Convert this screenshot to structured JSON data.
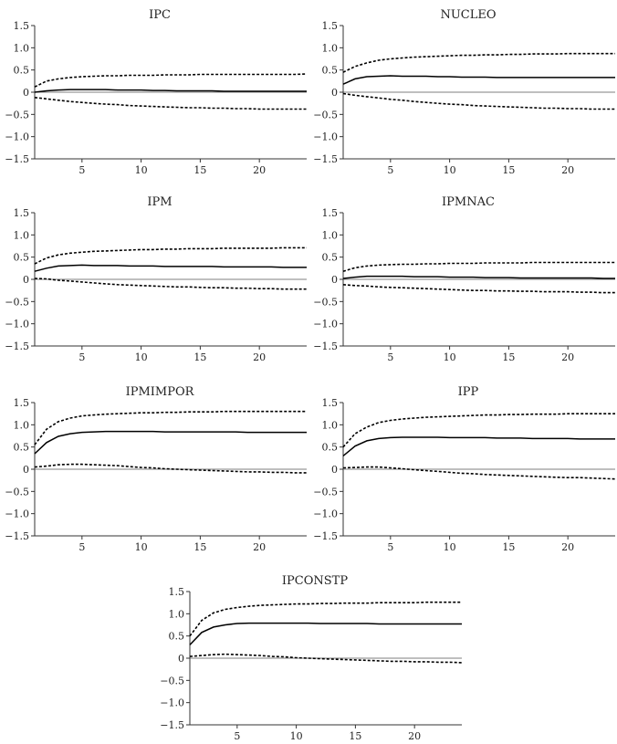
{
  "chart_data": [
    {
      "type": "line",
      "title": "IPC",
      "xlabel": "",
      "ylabel": "",
      "xlim": [
        1,
        24
      ],
      "ylim": [
        -1.5,
        1.5
      ],
      "xticks": [
        5,
        10,
        15,
        20
      ],
      "xtick_labels": [
        "5",
        "10",
        "15",
        "20"
      ],
      "yticks": [
        1.5,
        1.0,
        0.5,
        0,
        -0.5,
        -1.0,
        -1.5
      ],
      "ytick_labels": [
        "1.5",
        "1.0",
        "0.5",
        "0",
        "−0.5",
        "−1.0",
        "−1.5"
      ],
      "x": [
        1,
        2,
        3,
        4,
        5,
        6,
        7,
        8,
        9,
        10,
        11,
        12,
        13,
        14,
        15,
        16,
        17,
        18,
        19,
        20,
        21,
        22,
        23,
        24
      ],
      "series": [
        {
          "name": "upper",
          "style": "dashed",
          "values": [
            0.12,
            0.25,
            0.3,
            0.33,
            0.35,
            0.36,
            0.37,
            0.37,
            0.38,
            0.38,
            0.38,
            0.39,
            0.39,
            0.39,
            0.4,
            0.4,
            0.4,
            0.4,
            0.4,
            0.4,
            0.4,
            0.4,
            0.4,
            0.41
          ]
        },
        {
          "name": "response",
          "style": "solid",
          "values": [
            0.0,
            0.03,
            0.05,
            0.06,
            0.06,
            0.06,
            0.06,
            0.05,
            0.05,
            0.05,
            0.04,
            0.04,
            0.03,
            0.03,
            0.03,
            0.03,
            0.02,
            0.02,
            0.02,
            0.02,
            0.02,
            0.02,
            0.02,
            0.02
          ]
        },
        {
          "name": "lower",
          "style": "dashed",
          "values": [
            -0.12,
            -0.15,
            -0.18,
            -0.21,
            -0.23,
            -0.25,
            -0.27,
            -0.28,
            -0.3,
            -0.31,
            -0.32,
            -0.33,
            -0.34,
            -0.35,
            -0.35,
            -0.36,
            -0.36,
            -0.37,
            -0.37,
            -0.38,
            -0.38,
            -0.38,
            -0.38,
            -0.38
          ]
        }
      ]
    },
    {
      "type": "line",
      "title": "NUCLEO",
      "xlabel": "",
      "ylabel": "",
      "xlim": [
        1,
        24
      ],
      "ylim": [
        -1.5,
        1.5
      ],
      "xticks": [
        5,
        10,
        15,
        20
      ],
      "xtick_labels": [
        "5",
        "10",
        "15",
        "20"
      ],
      "yticks": [
        1.5,
        1.0,
        0.5,
        0,
        -0.5,
        -1.0,
        -1.5
      ],
      "ytick_labels": [
        "1.5",
        "1.0",
        "0.5",
        "0",
        "−0.5",
        "−1.0",
        "−1.5"
      ],
      "x": [
        1,
        2,
        3,
        4,
        5,
        6,
        7,
        8,
        9,
        10,
        11,
        12,
        13,
        14,
        15,
        16,
        17,
        18,
        19,
        20,
        21,
        22,
        23,
        24
      ],
      "series": [
        {
          "name": "upper",
          "style": "dashed",
          "values": [
            0.45,
            0.58,
            0.66,
            0.72,
            0.75,
            0.77,
            0.79,
            0.8,
            0.81,
            0.82,
            0.83,
            0.83,
            0.84,
            0.84,
            0.85,
            0.85,
            0.86,
            0.86,
            0.86,
            0.87,
            0.87,
            0.87,
            0.87,
            0.87
          ]
        },
        {
          "name": "response",
          "style": "solid",
          "values": [
            0.18,
            0.3,
            0.35,
            0.36,
            0.37,
            0.36,
            0.36,
            0.36,
            0.35,
            0.35,
            0.34,
            0.34,
            0.34,
            0.33,
            0.33,
            0.33,
            0.33,
            0.33,
            0.33,
            0.33,
            0.33,
            0.33,
            0.33,
            0.33
          ]
        },
        {
          "name": "lower",
          "style": "dashed",
          "values": [
            -0.03,
            -0.07,
            -0.1,
            -0.13,
            -0.16,
            -0.18,
            -0.21,
            -0.23,
            -0.25,
            -0.27,
            -0.28,
            -0.3,
            -0.31,
            -0.32,
            -0.33,
            -0.34,
            -0.35,
            -0.36,
            -0.36,
            -0.37,
            -0.37,
            -0.38,
            -0.38,
            -0.38
          ]
        }
      ]
    },
    {
      "type": "line",
      "title": "IPM",
      "xlabel": "",
      "ylabel": "",
      "xlim": [
        1,
        24
      ],
      "ylim": [
        -1.5,
        1.5
      ],
      "xticks": [
        5,
        10,
        15,
        20
      ],
      "xtick_labels": [
        "5",
        "10",
        "15",
        "20"
      ],
      "yticks": [
        1.5,
        1.0,
        0.5,
        0,
        -0.5,
        -1.0,
        -1.5
      ],
      "ytick_labels": [
        "1.5",
        "1.0",
        "0.5",
        "0",
        "−0.5",
        "−1.0",
        "−1.5"
      ],
      "x": [
        1,
        2,
        3,
        4,
        5,
        6,
        7,
        8,
        9,
        10,
        11,
        12,
        13,
        14,
        15,
        16,
        17,
        18,
        19,
        20,
        21,
        22,
        23,
        24
      ],
      "series": [
        {
          "name": "upper",
          "style": "dashed",
          "values": [
            0.35,
            0.48,
            0.55,
            0.59,
            0.61,
            0.63,
            0.64,
            0.65,
            0.66,
            0.67,
            0.67,
            0.68,
            0.68,
            0.69,
            0.69,
            0.69,
            0.7,
            0.7,
            0.7,
            0.7,
            0.7,
            0.71,
            0.71,
            0.71
          ]
        },
        {
          "name": "response",
          "style": "solid",
          "values": [
            0.18,
            0.25,
            0.3,
            0.31,
            0.32,
            0.31,
            0.31,
            0.31,
            0.3,
            0.3,
            0.3,
            0.29,
            0.29,
            0.29,
            0.29,
            0.29,
            0.28,
            0.28,
            0.28,
            0.28,
            0.28,
            0.27,
            0.27,
            0.27
          ]
        },
        {
          "name": "lower",
          "style": "dashed",
          "values": [
            0.02,
            0.01,
            -0.02,
            -0.04,
            -0.06,
            -0.08,
            -0.1,
            -0.12,
            -0.13,
            -0.14,
            -0.15,
            -0.16,
            -0.17,
            -0.17,
            -0.18,
            -0.19,
            -0.19,
            -0.2,
            -0.2,
            -0.21,
            -0.21,
            -0.22,
            -0.22,
            -0.22
          ]
        }
      ]
    },
    {
      "type": "line",
      "title": "IPMNAC",
      "xlabel": "",
      "ylabel": "",
      "xlim": [
        1,
        24
      ],
      "ylim": [
        -1.5,
        1.5
      ],
      "xticks": [
        5,
        10,
        15,
        20
      ],
      "xtick_labels": [
        "5",
        "10",
        "15",
        "20"
      ],
      "yticks": [
        1.5,
        1.0,
        0.5,
        0,
        -0.5,
        -1.0,
        -1.5
      ],
      "ytick_labels": [
        "1.5",
        "1.0",
        "0.5",
        "0",
        "−0.5",
        "−1.0",
        "−1.5"
      ],
      "x": [
        1,
        2,
        3,
        4,
        5,
        6,
        7,
        8,
        9,
        10,
        11,
        12,
        13,
        14,
        15,
        16,
        17,
        18,
        19,
        20,
        21,
        22,
        23,
        24
      ],
      "series": [
        {
          "name": "upper",
          "style": "dashed",
          "values": [
            0.18,
            0.26,
            0.3,
            0.32,
            0.33,
            0.34,
            0.34,
            0.35,
            0.35,
            0.36,
            0.36,
            0.36,
            0.37,
            0.37,
            0.37,
            0.37,
            0.38,
            0.38,
            0.38,
            0.38,
            0.38,
            0.38,
            0.38,
            0.38
          ]
        },
        {
          "name": "response",
          "style": "solid",
          "values": [
            0.02,
            0.05,
            0.07,
            0.07,
            0.07,
            0.07,
            0.06,
            0.06,
            0.06,
            0.05,
            0.05,
            0.05,
            0.04,
            0.04,
            0.04,
            0.03,
            0.03,
            0.03,
            0.03,
            0.03,
            0.03,
            0.03,
            0.02,
            0.02
          ]
        },
        {
          "name": "lower",
          "style": "dashed",
          "values": [
            -0.12,
            -0.14,
            -0.15,
            -0.17,
            -0.18,
            -0.19,
            -0.2,
            -0.21,
            -0.22,
            -0.23,
            -0.24,
            -0.25,
            -0.25,
            -0.26,
            -0.26,
            -0.27,
            -0.27,
            -0.28,
            -0.28,
            -0.28,
            -0.29,
            -0.29,
            -0.3,
            -0.3
          ]
        }
      ]
    },
    {
      "type": "line",
      "title": "IPMIMPOR",
      "xlabel": "",
      "ylabel": "",
      "xlim": [
        1,
        24
      ],
      "ylim": [
        -1.5,
        1.5
      ],
      "xticks": [
        5,
        10,
        15,
        20
      ],
      "xtick_labels": [
        "5",
        "10",
        "15",
        "20"
      ],
      "yticks": [
        1.5,
        1.0,
        0.5,
        0,
        -0.5,
        -1.0,
        -1.5
      ],
      "ytick_labels": [
        "1.5",
        "1.0",
        "0.5",
        "0",
        "−0.5",
        "−1.0",
        "−1.5"
      ],
      "x": [
        1,
        2,
        3,
        4,
        5,
        6,
        7,
        8,
        9,
        10,
        11,
        12,
        13,
        14,
        15,
        16,
        17,
        18,
        19,
        20,
        21,
        22,
        23,
        24
      ],
      "series": [
        {
          "name": "upper",
          "style": "dashed",
          "values": [
            0.55,
            0.9,
            1.07,
            1.15,
            1.2,
            1.22,
            1.24,
            1.25,
            1.26,
            1.27,
            1.27,
            1.28,
            1.28,
            1.29,
            1.29,
            1.29,
            1.3,
            1.3,
            1.3,
            1.3,
            1.3,
            1.3,
            1.3,
            1.3
          ]
        },
        {
          "name": "response",
          "style": "solid",
          "values": [
            0.35,
            0.6,
            0.74,
            0.8,
            0.83,
            0.84,
            0.85,
            0.85,
            0.85,
            0.85,
            0.85,
            0.84,
            0.84,
            0.84,
            0.84,
            0.84,
            0.84,
            0.84,
            0.83,
            0.83,
            0.83,
            0.83,
            0.83,
            0.83
          ]
        },
        {
          "name": "lower",
          "style": "dashed",
          "values": [
            0.05,
            0.07,
            0.1,
            0.11,
            0.11,
            0.1,
            0.09,
            0.08,
            0.06,
            0.04,
            0.03,
            0.01,
            0.0,
            -0.01,
            -0.02,
            -0.03,
            -0.04,
            -0.05,
            -0.06,
            -0.06,
            -0.07,
            -0.07,
            -0.08,
            -0.08
          ]
        }
      ]
    },
    {
      "type": "line",
      "title": "IPP",
      "xlabel": "",
      "ylabel": "",
      "xlim": [
        1,
        24
      ],
      "ylim": [
        -1.5,
        1.5
      ],
      "xticks": [
        5,
        10,
        15,
        20
      ],
      "xtick_labels": [
        "5",
        "10",
        "15",
        "20"
      ],
      "yticks": [
        1.5,
        1.0,
        0.5,
        0,
        -0.5,
        -1.0,
        -1.5
      ],
      "ytick_labels": [
        "1.5",
        "1.0",
        "0.5",
        "0",
        "−0.5",
        "−1.0",
        "−1.5"
      ],
      "x": [
        1,
        2,
        3,
        4,
        5,
        6,
        7,
        8,
        9,
        10,
        11,
        12,
        13,
        14,
        15,
        16,
        17,
        18,
        19,
        20,
        21,
        22,
        23,
        24
      ],
      "series": [
        {
          "name": "upper",
          "style": "dashed",
          "values": [
            0.5,
            0.8,
            0.95,
            1.05,
            1.1,
            1.13,
            1.15,
            1.17,
            1.18,
            1.19,
            1.2,
            1.21,
            1.22,
            1.22,
            1.23,
            1.23,
            1.24,
            1.24,
            1.24,
            1.25,
            1.25,
            1.25,
            1.25,
            1.25
          ]
        },
        {
          "name": "response",
          "style": "solid",
          "values": [
            0.3,
            0.52,
            0.64,
            0.69,
            0.71,
            0.72,
            0.72,
            0.72,
            0.72,
            0.71,
            0.71,
            0.71,
            0.71,
            0.7,
            0.7,
            0.7,
            0.69,
            0.69,
            0.69,
            0.69,
            0.68,
            0.68,
            0.68,
            0.68
          ]
        },
        {
          "name": "lower",
          "style": "dashed",
          "values": [
            0.03,
            0.04,
            0.05,
            0.05,
            0.03,
            0.01,
            -0.01,
            -0.03,
            -0.05,
            -0.07,
            -0.09,
            -0.1,
            -0.12,
            -0.13,
            -0.14,
            -0.15,
            -0.16,
            -0.17,
            -0.18,
            -0.19,
            -0.19,
            -0.2,
            -0.21,
            -0.22
          ]
        }
      ]
    },
    {
      "type": "line",
      "title": "IPCONSTP",
      "xlabel": "",
      "ylabel": "",
      "xlim": [
        1,
        24
      ],
      "ylim": [
        -1.5,
        1.5
      ],
      "xticks": [
        5,
        10,
        15,
        20
      ],
      "xtick_labels": [
        "5",
        "10",
        "15",
        "20"
      ],
      "yticks": [
        1.5,
        1.0,
        0.5,
        0,
        -0.5,
        -1.0,
        -1.5
      ],
      "ytick_labels": [
        "1.5",
        "1.0",
        "0.5",
        "0",
        "−0.5",
        "−1.0",
        "−1.5"
      ],
      "x": [
        1,
        2,
        3,
        4,
        5,
        6,
        7,
        8,
        9,
        10,
        11,
        12,
        13,
        14,
        15,
        16,
        17,
        18,
        19,
        20,
        21,
        22,
        23,
        24
      ],
      "series": [
        {
          "name": "upper",
          "style": "dashed",
          "values": [
            0.5,
            0.85,
            1.02,
            1.1,
            1.14,
            1.17,
            1.19,
            1.2,
            1.21,
            1.22,
            1.22,
            1.23,
            1.23,
            1.24,
            1.24,
            1.24,
            1.25,
            1.25,
            1.25,
            1.25,
            1.26,
            1.26,
            1.26,
            1.26
          ]
        },
        {
          "name": "response",
          "style": "solid",
          "values": [
            0.3,
            0.58,
            0.7,
            0.75,
            0.78,
            0.79,
            0.79,
            0.79,
            0.79,
            0.79,
            0.79,
            0.78,
            0.78,
            0.78,
            0.78,
            0.78,
            0.77,
            0.77,
            0.77,
            0.77,
            0.77,
            0.77,
            0.77,
            0.77
          ]
        },
        {
          "name": "lower",
          "style": "dashed",
          "values": [
            0.04,
            0.06,
            0.08,
            0.09,
            0.08,
            0.07,
            0.06,
            0.04,
            0.03,
            0.01,
            0.0,
            -0.01,
            -0.02,
            -0.03,
            -0.04,
            -0.05,
            -0.06,
            -0.07,
            -0.07,
            -0.08,
            -0.08,
            -0.09,
            -0.09,
            -0.1
          ]
        }
      ]
    }
  ]
}
